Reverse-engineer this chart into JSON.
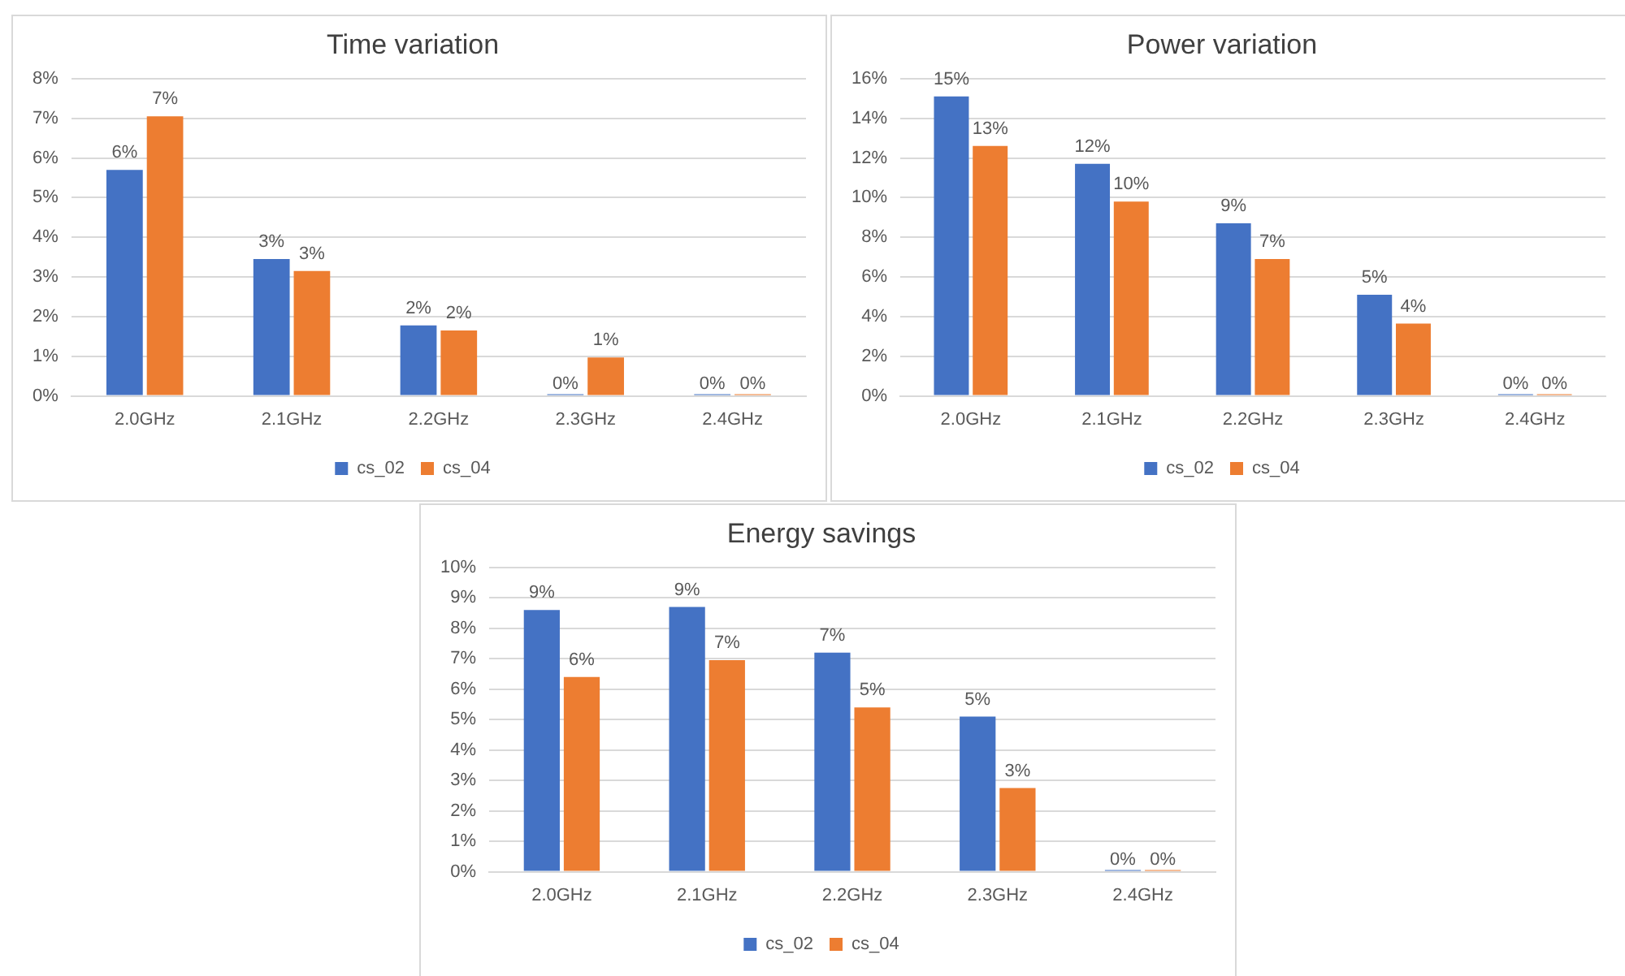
{
  "chart_data": [
    {
      "type": "bar",
      "title": "Time variation",
      "categories": [
        "2.0GHz",
        "2.1GHz",
        "2.2GHz",
        "2.3GHz",
        "2.4GHz"
      ],
      "series": [
        {
          "name": "cs_02",
          "color": "#4472c4",
          "values": [
            5.7,
            3.45,
            1.78,
            0,
            0
          ],
          "value_labels": [
            "6%",
            "3%",
            "2%",
            "0%",
            "0%"
          ]
        },
        {
          "name": "cs_04",
          "color": "#ed7d31",
          "values": [
            7.05,
            3.15,
            1.65,
            0.97,
            0
          ],
          "value_labels": [
            "7%",
            "3%",
            "2%",
            "1%",
            "0%"
          ]
        }
      ],
      "ylim": [
        0,
        8
      ],
      "yticks": [
        {
          "value": 0,
          "label": "0%"
        },
        {
          "value": 1,
          "label": "1%"
        },
        {
          "value": 2,
          "label": "2%"
        },
        {
          "value": 3,
          "label": "3%"
        },
        {
          "value": 4,
          "label": "4%"
        },
        {
          "value": 5,
          "label": "5%"
        },
        {
          "value": 6,
          "label": "6%"
        },
        {
          "value": 7,
          "label": "7%"
        },
        {
          "value": 8,
          "label": "8%"
        }
      ],
      "grid": "y",
      "legend": "bottom"
    },
    {
      "type": "bar",
      "title": "Power variation",
      "categories": [
        "2.0GHz",
        "2.1GHz",
        "2.2GHz",
        "2.3GHz",
        "2.4GHz"
      ],
      "series": [
        {
          "name": "cs_02",
          "color": "#4472c4",
          "values": [
            15.1,
            11.7,
            8.7,
            5.1,
            0
          ],
          "value_labels": [
            "15%",
            "12%",
            "9%",
            "5%",
            "0%"
          ]
        },
        {
          "name": "cs_04",
          "color": "#ed7d31",
          "values": [
            12.6,
            9.8,
            6.9,
            3.65,
            0
          ],
          "value_labels": [
            "13%",
            "10%",
            "7%",
            "4%",
            "0%"
          ]
        }
      ],
      "ylim": [
        0,
        16
      ],
      "yticks": [
        {
          "value": 0,
          "label": "0%"
        },
        {
          "value": 2,
          "label": "2%"
        },
        {
          "value": 4,
          "label": "4%"
        },
        {
          "value": 6,
          "label": "6%"
        },
        {
          "value": 8,
          "label": "8%"
        },
        {
          "value": 10,
          "label": "10%"
        },
        {
          "value": 12,
          "label": "12%"
        },
        {
          "value": 14,
          "label": "14%"
        },
        {
          "value": 16,
          "label": "16%"
        }
      ],
      "grid": "y",
      "legend": "bottom"
    },
    {
      "type": "bar",
      "title": "Energy savings",
      "categories": [
        "2.0GHz",
        "2.1GHz",
        "2.2GHz",
        "2.3GHz",
        "2.4GHz"
      ],
      "series": [
        {
          "name": "cs_02",
          "color": "#4472c4",
          "values": [
            8.6,
            8.7,
            7.2,
            5.1,
            0
          ],
          "value_labels": [
            "9%",
            "9%",
            "7%",
            "5%",
            "0%"
          ]
        },
        {
          "name": "cs_04",
          "color": "#ed7d31",
          "values": [
            6.4,
            6.95,
            5.4,
            2.75,
            0
          ],
          "value_labels": [
            "6%",
            "7%",
            "5%",
            "3%",
            "0%"
          ]
        }
      ],
      "ylim": [
        0,
        10
      ],
      "yticks": [
        {
          "value": 0,
          "label": "0%"
        },
        {
          "value": 1,
          "label": "1%"
        },
        {
          "value": 2,
          "label": "2%"
        },
        {
          "value": 3,
          "label": "3%"
        },
        {
          "value": 4,
          "label": "4%"
        },
        {
          "value": 5,
          "label": "5%"
        },
        {
          "value": 6,
          "label": "6%"
        },
        {
          "value": 7,
          "label": "7%"
        },
        {
          "value": 8,
          "label": "8%"
        },
        {
          "value": 9,
          "label": "9%"
        },
        {
          "value": 10,
          "label": "10%"
        }
      ],
      "grid": "y",
      "legend": "bottom"
    }
  ]
}
